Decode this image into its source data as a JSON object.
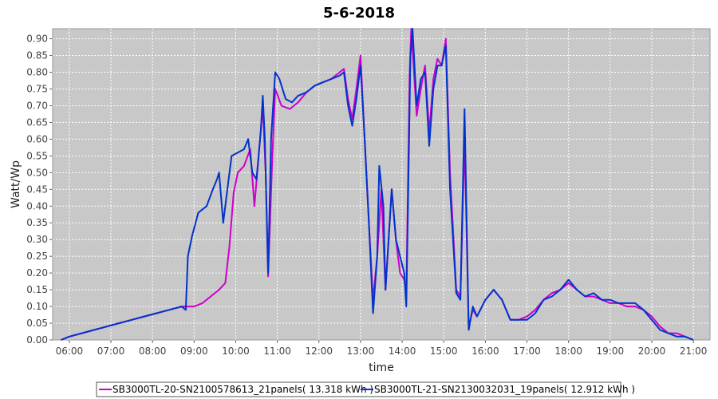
{
  "chart_data": {
    "type": "line",
    "title": "5-6-2018",
    "xlabel": "time",
    "ylabel": "Watt/Wp",
    "x_ticks": [
      "06:00",
      "07:00",
      "08:00",
      "09:00",
      "10:00",
      "11:00",
      "12:00",
      "13:00",
      "14:00",
      "15:00",
      "16:00",
      "17:00",
      "18:00",
      "19:00",
      "20:00",
      "21:00"
    ],
    "xlim_hours": [
      5.6,
      21.4
    ],
    "ylim": [
      0,
      0.93
    ],
    "y_ticks": [
      0.0,
      0.05,
      0.1,
      0.15,
      0.2,
      0.25,
      0.3,
      0.35,
      0.4,
      0.45,
      0.5,
      0.55,
      0.6,
      0.65,
      0.7,
      0.75,
      0.8,
      0.85,
      0.9
    ],
    "grid": true,
    "legend_position": "bottom",
    "series": [
      {
        "name": "SB3000TL-20-SN2100578613_21panels( 13.318 kWh )",
        "color": "#cc00cc",
        "points": [
          [
            5.8,
            0.0
          ],
          [
            6.0,
            0.01
          ],
          [
            6.3,
            0.02
          ],
          [
            6.6,
            0.03
          ],
          [
            6.9,
            0.04
          ],
          [
            7.2,
            0.05
          ],
          [
            7.5,
            0.06
          ],
          [
            7.8,
            0.07
          ],
          [
            8.1,
            0.08
          ],
          [
            8.4,
            0.09
          ],
          [
            8.7,
            0.1
          ],
          [
            9.0,
            0.1
          ],
          [
            9.2,
            0.11
          ],
          [
            9.4,
            0.13
          ],
          [
            9.6,
            0.15
          ],
          [
            9.75,
            0.17
          ],
          [
            9.85,
            0.28
          ],
          [
            9.95,
            0.44
          ],
          [
            10.05,
            0.5
          ],
          [
            10.2,
            0.52
          ],
          [
            10.35,
            0.57
          ],
          [
            10.45,
            0.4
          ],
          [
            10.55,
            0.55
          ],
          [
            10.65,
            0.7
          ],
          [
            10.72,
            0.5
          ],
          [
            10.78,
            0.19
          ],
          [
            10.88,
            0.55
          ],
          [
            10.95,
            0.75
          ],
          [
            11.1,
            0.7
          ],
          [
            11.3,
            0.69
          ],
          [
            11.5,
            0.71
          ],
          [
            11.7,
            0.74
          ],
          [
            11.9,
            0.76
          ],
          [
            12.1,
            0.77
          ],
          [
            12.3,
            0.78
          ],
          [
            12.5,
            0.8
          ],
          [
            12.6,
            0.81
          ],
          [
            12.7,
            0.72
          ],
          [
            12.8,
            0.66
          ],
          [
            12.9,
            0.75
          ],
          [
            13.0,
            0.85
          ],
          [
            13.1,
            0.6
          ],
          [
            13.2,
            0.35
          ],
          [
            13.3,
            0.12
          ],
          [
            13.4,
            0.25
          ],
          [
            13.5,
            0.45
          ],
          [
            13.6,
            0.15
          ],
          [
            13.7,
            0.35
          ],
          [
            13.75,
            0.45
          ],
          [
            13.85,
            0.3
          ],
          [
            13.95,
            0.2
          ],
          [
            14.05,
            0.18
          ],
          [
            14.1,
            0.14
          ],
          [
            14.18,
            0.8
          ],
          [
            14.22,
            0.93
          ],
          [
            14.35,
            0.67
          ],
          [
            14.45,
            0.75
          ],
          [
            14.55,
            0.82
          ],
          [
            14.65,
            0.62
          ],
          [
            14.75,
            0.78
          ],
          [
            14.85,
            0.84
          ],
          [
            14.95,
            0.82
          ],
          [
            15.05,
            0.9
          ],
          [
            15.15,
            0.5
          ],
          [
            15.3,
            0.15
          ],
          [
            15.4,
            0.13
          ],
          [
            15.5,
            0.6
          ],
          [
            15.6,
            0.04
          ],
          [
            15.7,
            0.09
          ],
          [
            15.8,
            0.07
          ],
          [
            16.0,
            0.12
          ],
          [
            16.2,
            0.15
          ],
          [
            16.4,
            0.12
          ],
          [
            16.6,
            0.06
          ],
          [
            16.8,
            0.06
          ],
          [
            17.0,
            0.07
          ],
          [
            17.2,
            0.09
          ],
          [
            17.4,
            0.12
          ],
          [
            17.6,
            0.14
          ],
          [
            17.8,
            0.15
          ],
          [
            18.0,
            0.17
          ],
          [
            18.2,
            0.15
          ],
          [
            18.4,
            0.13
          ],
          [
            18.6,
            0.13
          ],
          [
            18.8,
            0.12
          ],
          [
            19.0,
            0.11
          ],
          [
            19.2,
            0.11
          ],
          [
            19.4,
            0.1
          ],
          [
            19.6,
            0.1
          ],
          [
            19.8,
            0.09
          ],
          [
            20.0,
            0.07
          ],
          [
            20.2,
            0.04
          ],
          [
            20.4,
            0.02
          ],
          [
            20.6,
            0.02
          ],
          [
            20.8,
            0.01
          ],
          [
            21.0,
            0.0
          ]
        ]
      },
      {
        "name": "SB3000TL-21-SN2130032031_19panels( 12.912 kWh )",
        "color": "#0033cc",
        "points": [
          [
            5.8,
            0.0
          ],
          [
            6.0,
            0.01
          ],
          [
            6.3,
            0.02
          ],
          [
            6.6,
            0.03
          ],
          [
            6.9,
            0.04
          ],
          [
            7.2,
            0.05
          ],
          [
            7.5,
            0.06
          ],
          [
            7.8,
            0.07
          ],
          [
            8.1,
            0.08
          ],
          [
            8.4,
            0.09
          ],
          [
            8.7,
            0.1
          ],
          [
            8.8,
            0.09
          ],
          [
            8.85,
            0.25
          ],
          [
            8.95,
            0.31
          ],
          [
            9.1,
            0.38
          ],
          [
            9.3,
            0.4
          ],
          [
            9.45,
            0.45
          ],
          [
            9.55,
            0.48
          ],
          [
            9.6,
            0.5
          ],
          [
            9.7,
            0.35
          ],
          [
            9.8,
            0.45
          ],
          [
            9.9,
            0.55
          ],
          [
            10.05,
            0.56
          ],
          [
            10.2,
            0.57
          ],
          [
            10.3,
            0.6
          ],
          [
            10.4,
            0.5
          ],
          [
            10.5,
            0.48
          ],
          [
            10.6,
            0.62
          ],
          [
            10.65,
            0.73
          ],
          [
            10.7,
            0.6
          ],
          [
            10.78,
            0.2
          ],
          [
            10.85,
            0.6
          ],
          [
            10.95,
            0.8
          ],
          [
            11.05,
            0.78
          ],
          [
            11.2,
            0.72
          ],
          [
            11.35,
            0.71
          ],
          [
            11.5,
            0.73
          ],
          [
            11.7,
            0.74
          ],
          [
            11.9,
            0.76
          ],
          [
            12.1,
            0.77
          ],
          [
            12.3,
            0.78
          ],
          [
            12.5,
            0.79
          ],
          [
            12.6,
            0.8
          ],
          [
            12.7,
            0.7
          ],
          [
            12.8,
            0.64
          ],
          [
            12.9,
            0.72
          ],
          [
            13.0,
            0.82
          ],
          [
            13.1,
            0.6
          ],
          [
            13.2,
            0.35
          ],
          [
            13.3,
            0.08
          ],
          [
            13.4,
            0.25
          ],
          [
            13.45,
            0.52
          ],
          [
            13.55,
            0.4
          ],
          [
            13.6,
            0.15
          ],
          [
            13.7,
            0.35
          ],
          [
            13.75,
            0.45
          ],
          [
            13.85,
            0.3
          ],
          [
            13.95,
            0.25
          ],
          [
            14.05,
            0.2
          ],
          [
            14.1,
            0.1
          ],
          [
            14.2,
            0.85
          ],
          [
            14.25,
            0.93
          ],
          [
            14.35,
            0.7
          ],
          [
            14.45,
            0.78
          ],
          [
            14.55,
            0.8
          ],
          [
            14.65,
            0.58
          ],
          [
            14.75,
            0.75
          ],
          [
            14.85,
            0.82
          ],
          [
            14.95,
            0.82
          ],
          [
            15.05,
            0.88
          ],
          [
            15.15,
            0.45
          ],
          [
            15.3,
            0.14
          ],
          [
            15.4,
            0.12
          ],
          [
            15.5,
            0.69
          ],
          [
            15.6,
            0.03
          ],
          [
            15.7,
            0.1
          ],
          [
            15.8,
            0.07
          ],
          [
            16.0,
            0.12
          ],
          [
            16.2,
            0.15
          ],
          [
            16.4,
            0.12
          ],
          [
            16.6,
            0.06
          ],
          [
            16.8,
            0.06
          ],
          [
            17.0,
            0.06
          ],
          [
            17.2,
            0.08
          ],
          [
            17.4,
            0.12
          ],
          [
            17.6,
            0.13
          ],
          [
            17.8,
            0.15
          ],
          [
            18.0,
            0.18
          ],
          [
            18.2,
            0.15
          ],
          [
            18.4,
            0.13
          ],
          [
            18.6,
            0.14
          ],
          [
            18.8,
            0.12
          ],
          [
            19.0,
            0.12
          ],
          [
            19.2,
            0.11
          ],
          [
            19.4,
            0.11
          ],
          [
            19.6,
            0.11
          ],
          [
            19.8,
            0.09
          ],
          [
            20.0,
            0.06
          ],
          [
            20.2,
            0.03
          ],
          [
            20.4,
            0.02
          ],
          [
            20.6,
            0.01
          ],
          [
            20.8,
            0.01
          ],
          [
            21.0,
            0.0
          ]
        ]
      }
    ]
  }
}
